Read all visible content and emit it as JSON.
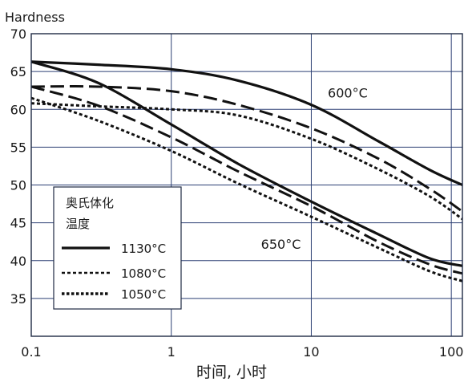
{
  "chart_data": {
    "type": "line",
    "ylabel": "Hardness",
    "xlabel": "时间, 小时",
    "x_scale": "log",
    "xlim": [
      0.1,
      120
    ],
    "ylim": [
      30,
      70
    ],
    "x_ticks": [
      0.1,
      1,
      10,
      100
    ],
    "x_tick_labels": [
      "0.1",
      "1",
      "10",
      "100"
    ],
    "y_ticks": [
      35,
      40,
      45,
      50,
      55,
      60,
      65,
      70
    ],
    "y_tick_labels": [
      "35",
      "40",
      "45",
      "50",
      "55",
      "60",
      "65",
      "70"
    ],
    "grid": true,
    "legend": {
      "title_lines": [
        "奥氏体化",
        "温度"
      ],
      "placement": "lower-left",
      "entries": [
        {
          "label": "1130°C",
          "style": "solid"
        },
        {
          "label": "1080°C",
          "style": "dotted"
        },
        {
          "label": "1050°C",
          "style": "dense-dotted"
        }
      ]
    },
    "annotations": [
      {
        "text": "600°C",
        "x": 18,
        "y": 62.2
      },
      {
        "text": "650°C",
        "x": 6,
        "y": 42.2
      }
    ],
    "series": [
      {
        "group": "600°C",
        "style": "solid",
        "points": [
          [
            0.1,
            66.3
          ],
          [
            0.3,
            65.9
          ],
          [
            1,
            65.3
          ],
          [
            3,
            63.8
          ],
          [
            10,
            60.6
          ],
          [
            30,
            55.8
          ],
          [
            70,
            52
          ],
          [
            120,
            50
          ]
        ]
      },
      {
        "group": "600°C",
        "style": "long-dash",
        "points": [
          [
            0.1,
            63
          ],
          [
            0.3,
            63
          ],
          [
            1,
            62.4
          ],
          [
            3,
            60.6
          ],
          [
            10,
            57.5
          ],
          [
            30,
            53.5
          ],
          [
            70,
            49.5
          ],
          [
            120,
            46.5
          ]
        ]
      },
      {
        "group": "600°C",
        "style": "dotted",
        "points": [
          [
            0.1,
            60.8
          ],
          [
            0.3,
            60.4
          ],
          [
            1,
            60
          ],
          [
            3,
            59.2
          ],
          [
            10,
            56.1
          ],
          [
            30,
            52.1
          ],
          [
            70,
            48.5
          ],
          [
            120,
            45.5
          ]
        ]
      },
      {
        "group": "650°C",
        "style": "solid",
        "points": [
          [
            0.1,
            66.3
          ],
          [
            0.3,
            63.5
          ],
          [
            1,
            58
          ],
          [
            3,
            52.8
          ],
          [
            10,
            47.8
          ],
          [
            30,
            43.5
          ],
          [
            70,
            40.3
          ],
          [
            120,
            39.3
          ]
        ]
      },
      {
        "group": "650°C",
        "style": "long-dash",
        "points": [
          [
            0.1,
            63
          ],
          [
            0.3,
            60.5
          ],
          [
            1,
            56.3
          ],
          [
            3,
            51.8
          ],
          [
            10,
            47.2
          ],
          [
            30,
            42.5
          ],
          [
            70,
            39.5
          ],
          [
            120,
            38.3
          ]
        ]
      },
      {
        "group": "650°C",
        "style": "dotted",
        "points": [
          [
            0.1,
            61.5
          ],
          [
            0.3,
            58.5
          ],
          [
            1,
            54.5
          ],
          [
            3,
            50.2
          ],
          [
            10,
            45.8
          ],
          [
            30,
            41.7
          ],
          [
            70,
            38.6
          ],
          [
            120,
            37.3
          ]
        ]
      }
    ]
  }
}
